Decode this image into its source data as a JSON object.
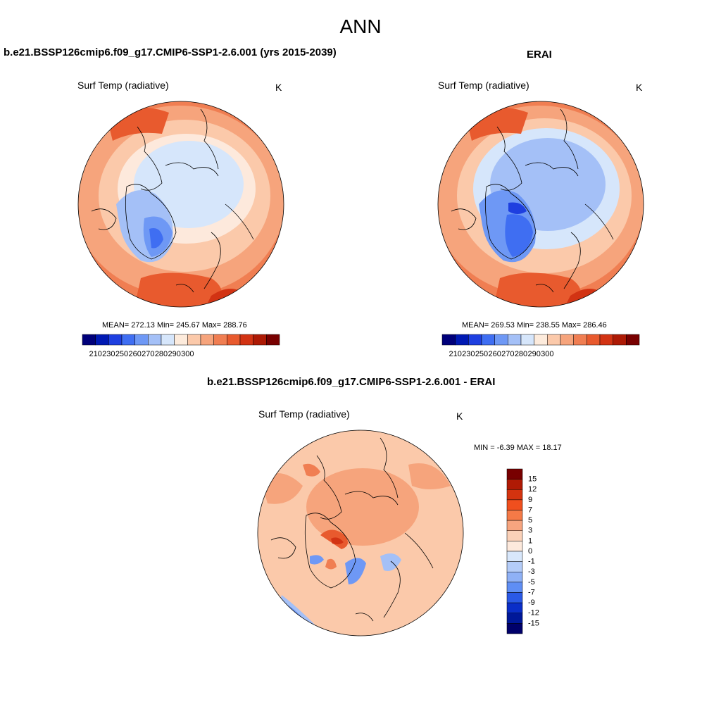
{
  "main_title": "ANN",
  "panels": [
    {
      "title": "b.e21.BSSP126cmip6.f09_g17.CMIP6-SSP1-2.6.001 (yrs 2015-2039)",
      "variable": "Surf Temp (radiative)",
      "units": "K",
      "stats": {
        "mean": "272.13",
        "min": "245.67",
        "max": "288.76"
      },
      "stats_label": "MEAN= 272.13  Min= 245.67  Max= 288.76"
    },
    {
      "title": "ERAI",
      "variable": "Surf Temp (radiative)",
      "units": "K",
      "stats": {
        "mean": "269.53",
        "min": "238.55",
        "max": "286.46"
      },
      "stats_label": "MEAN= 269.53  Min= 238.55  Max= 286.46"
    },
    {
      "title": "b.e21.BSSP126cmip6.f09_g17.CMIP6-SSP1-2.6.001 - ERAI",
      "variable": "Surf Temp (radiative)",
      "units": "K",
      "stats": {
        "min": "-6.39",
        "max": "18.17"
      },
      "stats_label": "MIN =  -6.39 MAX =  18.17"
    }
  ],
  "abs_colorbar": {
    "colors": [
      "#00007a",
      "#0019b3",
      "#1e3fe0",
      "#3f6ef2",
      "#6e98f5",
      "#a4c0f7",
      "#d6e6fb",
      "#fdebdc",
      "#fbc9aa",
      "#f6a47c",
      "#f07e52",
      "#e85a2e",
      "#d23313",
      "#ad1a05",
      "#780000"
    ],
    "tick_labels": [
      "210",
      "230",
      "250",
      "260",
      "270",
      "280",
      "290",
      "300"
    ]
  },
  "diff_colorbar": {
    "colors": [
      "#780000",
      "#b01a05",
      "#d4330f",
      "#f04f1e",
      "#f57a47",
      "#f7a57f",
      "#fbd1b8",
      "#fde9dc",
      "#d8e7fb",
      "#b4ccf8",
      "#8fb1f6",
      "#5f8ef4",
      "#2a59e6",
      "#0a2ec8",
      "#001899",
      "#00006a"
    ],
    "tick_labels": [
      "15",
      "12",
      "9",
      "7",
      "5",
      "3",
      "1",
      "0",
      "-1",
      "-3",
      "-5",
      "-7",
      "-9",
      "-12",
      "-15"
    ]
  },
  "colors": {
    "land_outline": "#000000",
    "warm_1": "#fbc9aa",
    "warm_2": "#f6a47c",
    "warm_3": "#f07e52",
    "warm_4": "#e85a2e",
    "warm_5": "#d23313",
    "cold_1": "#d6e6fb",
    "cold_2": "#a4c0f7",
    "cold_3": "#6e98f5",
    "cold_4": "#3f6ef2",
    "near_zero": "#fde9dc"
  }
}
